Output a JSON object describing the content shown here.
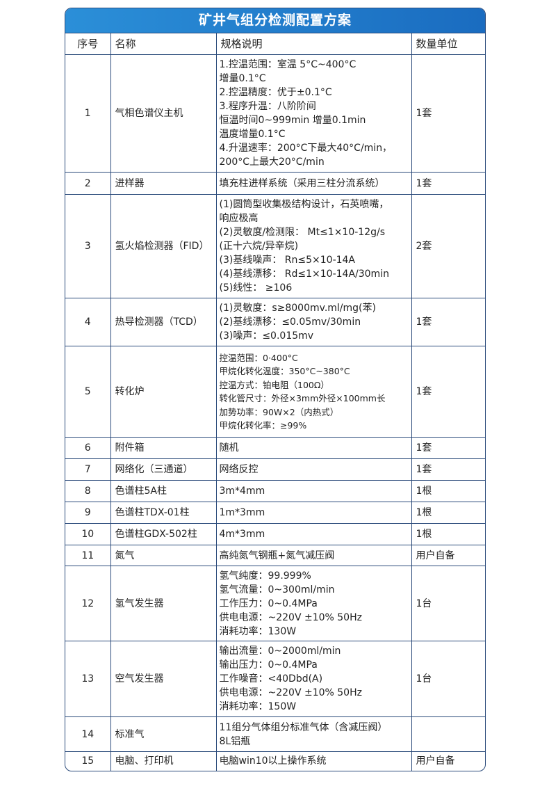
{
  "title": "矿井气组分检测配置方案",
  "headers": [
    "序号",
    "名称",
    "规格说明",
    "数量单位"
  ],
  "rows": [
    {
      "no": "1",
      "name": "气相色谱仪主机",
      "spec": [
        "1.控温范围：室温 5°C~400°C",
        "增量0.1°C",
        "2.控温精度：优于±0.1°C",
        "3.程序升温：八阶阶间",
        "恒温时间0~999min 增量0.1min",
        "温度增量0.1°C",
        "4.升温速率：200°C下最大40°C/min，",
        "200°C上最大20°C/min"
      ],
      "qty": "1套"
    },
    {
      "no": "2",
      "name": "进样器",
      "spec": [
        "填充柱进样系统（采用三柱分流系统）"
      ],
      "qty": "1套"
    },
    {
      "no": "3",
      "name": "氢火焰检测器（FID）",
      "spec": [
        "(1)圆筒型收集极结构设计，石英喷嘴，",
        "响应极高",
        "(2)灵敏度/检测限： Mt≤1×10-12g/s",
        "(正十六烷/异辛烷)",
        "(3)基线噪声： Rn≤5×10-14A",
        "(4)基线漂移： Rd≤1×10-14A/30min",
        "(5)线性： ≥106"
      ],
      "qty": "2套"
    },
    {
      "no": "4",
      "name": "热导检测器（TCD）",
      "spec": [
        "(1)灵敏度：s≥8000mv.ml/mg(苯)",
        "(2)基线漂移：≤0.05mv/30min",
        "(3)噪声：≤0.015mv"
      ],
      "qty": "1套"
    },
    {
      "no": "5",
      "name": "转化炉",
      "spec": [
        "控温范围：0·400°C",
        "甲烷化转化温度：350°C~380°C",
        "控温方式：铂电阻（100Ω）",
        "转化管尺寸：外径×3mm外径×100mm长",
        " 加势功率：90W×2（内热式）",
        "甲烷化转化率：≥99%"
      ],
      "qty": "1套"
    },
    {
      "no": "6",
      "name": "附件箱",
      "spec": [
        "随机"
      ],
      "qty": "1套"
    },
    {
      "no": "7",
      "name": "网络化（三通道）",
      "spec": [
        "网络反控"
      ],
      "qty": "1套"
    },
    {
      "no": "8",
      "name": "色谱柱5A柱",
      "spec": [
        "3m*4mm"
      ],
      "qty": "1根"
    },
    {
      "no": "9",
      "name": "色谱柱TDX-01柱",
      "spec": [
        "1m*3mm"
      ],
      "qty": "1根"
    },
    {
      "no": "10",
      "name": "色谱柱GDX-502柱",
      "spec": [
        "4m*3mm"
      ],
      "qty": "1根"
    },
    {
      "no": "11",
      "name": "氮气",
      "spec": [
        "高纯氮气钢瓶+氮气减压阀"
      ],
      "qty": "用户自备"
    },
    {
      "no": "12",
      "name": "氢气发生器",
      "spec": [
        "氢气纯度：99.999%",
        "氢气流量：0~300ml/min",
        "工作压力：0~0.4MPa",
        "供电电源：~220V ±10% 50Hz",
        "消耗功率：130W"
      ],
      "qty": "1台"
    },
    {
      "no": "13",
      "name": "空气发生器",
      "spec": [
        "输出流量：0~2000ml/min",
        "输出压力：0~0.4MPa",
        "工作噪音：<40Dbd(A)",
        "供电电源：~220V ±10% 50Hz",
        "消耗功率：150W"
      ],
      "qty": "1台"
    },
    {
      "no": "14",
      "name": "标准气",
      "spec": [
        "11组分气体组分标准气体（含减压阀）",
        "8L铝瓶"
      ],
      "qty": ""
    },
    {
      "no": "15",
      "name": "电脑、打印机",
      "spec": [
        "电脑win10以上操作系统"
      ],
      "qty": "用户自备"
    }
  ]
}
